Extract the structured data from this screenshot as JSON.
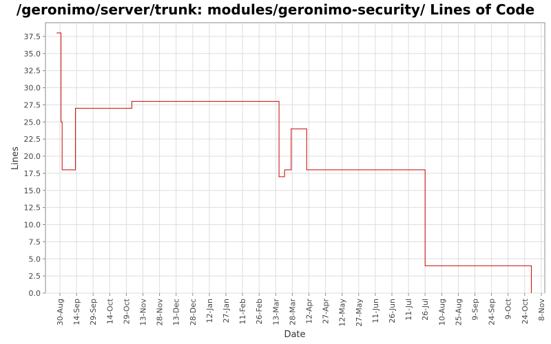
{
  "chart_data": {
    "type": "line",
    "title": "/geronimo/server/trunk: modules/geronimo-security/ Lines of Code",
    "xlabel": "Date",
    "ylabel": "Lines",
    "ylim": [
      0,
      39.5
    ],
    "yticks": [
      "0.0",
      "2.5",
      "5.0",
      "7.5",
      "10.0",
      "12.5",
      "15.0",
      "17.5",
      "20.0",
      "22.5",
      "25.0",
      "27.5",
      "30.0",
      "32.5",
      "35.0",
      "37.5"
    ],
    "xticks": [
      "30-Aug",
      "14-Sep",
      "29-Sep",
      "14-Oct",
      "29-Oct",
      "13-Nov",
      "28-Nov",
      "13-Dec",
      "28-Dec",
      "12-Jan",
      "27-Jan",
      "11-Feb",
      "26-Feb",
      "13-Mar",
      "28-Mar",
      "12-Apr",
      "27-Apr",
      "12-May",
      "27-May",
      "11-Jun",
      "26-Jun",
      "11-Jul",
      "26-Jul",
      "10-Aug",
      "25-Aug",
      "9-Sep",
      "24-Sep",
      "9-Oct",
      "24-Oct",
      "8-Nov"
    ],
    "grid": true,
    "line_color": "#cc0000",
    "series": [
      {
        "name": "",
        "step": true,
        "points": [
          {
            "x": "27-Aug",
            "y": 38
          },
          {
            "x": "31-Aug",
            "y": 25
          },
          {
            "x": "1-Sep",
            "y": 18
          },
          {
            "x": "13-Sep",
            "y": 27
          },
          {
            "x": "3-Nov",
            "y": 28
          },
          {
            "x": "16-Mar",
            "y": 17
          },
          {
            "x": "21-Mar",
            "y": 18
          },
          {
            "x": "27-Mar",
            "y": 24
          },
          {
            "x": "10-Apr",
            "y": 18
          },
          {
            "x": "26-Jul",
            "y": 4
          },
          {
            "x": "30-Oct",
            "y": 0
          }
        ]
      }
    ]
  }
}
